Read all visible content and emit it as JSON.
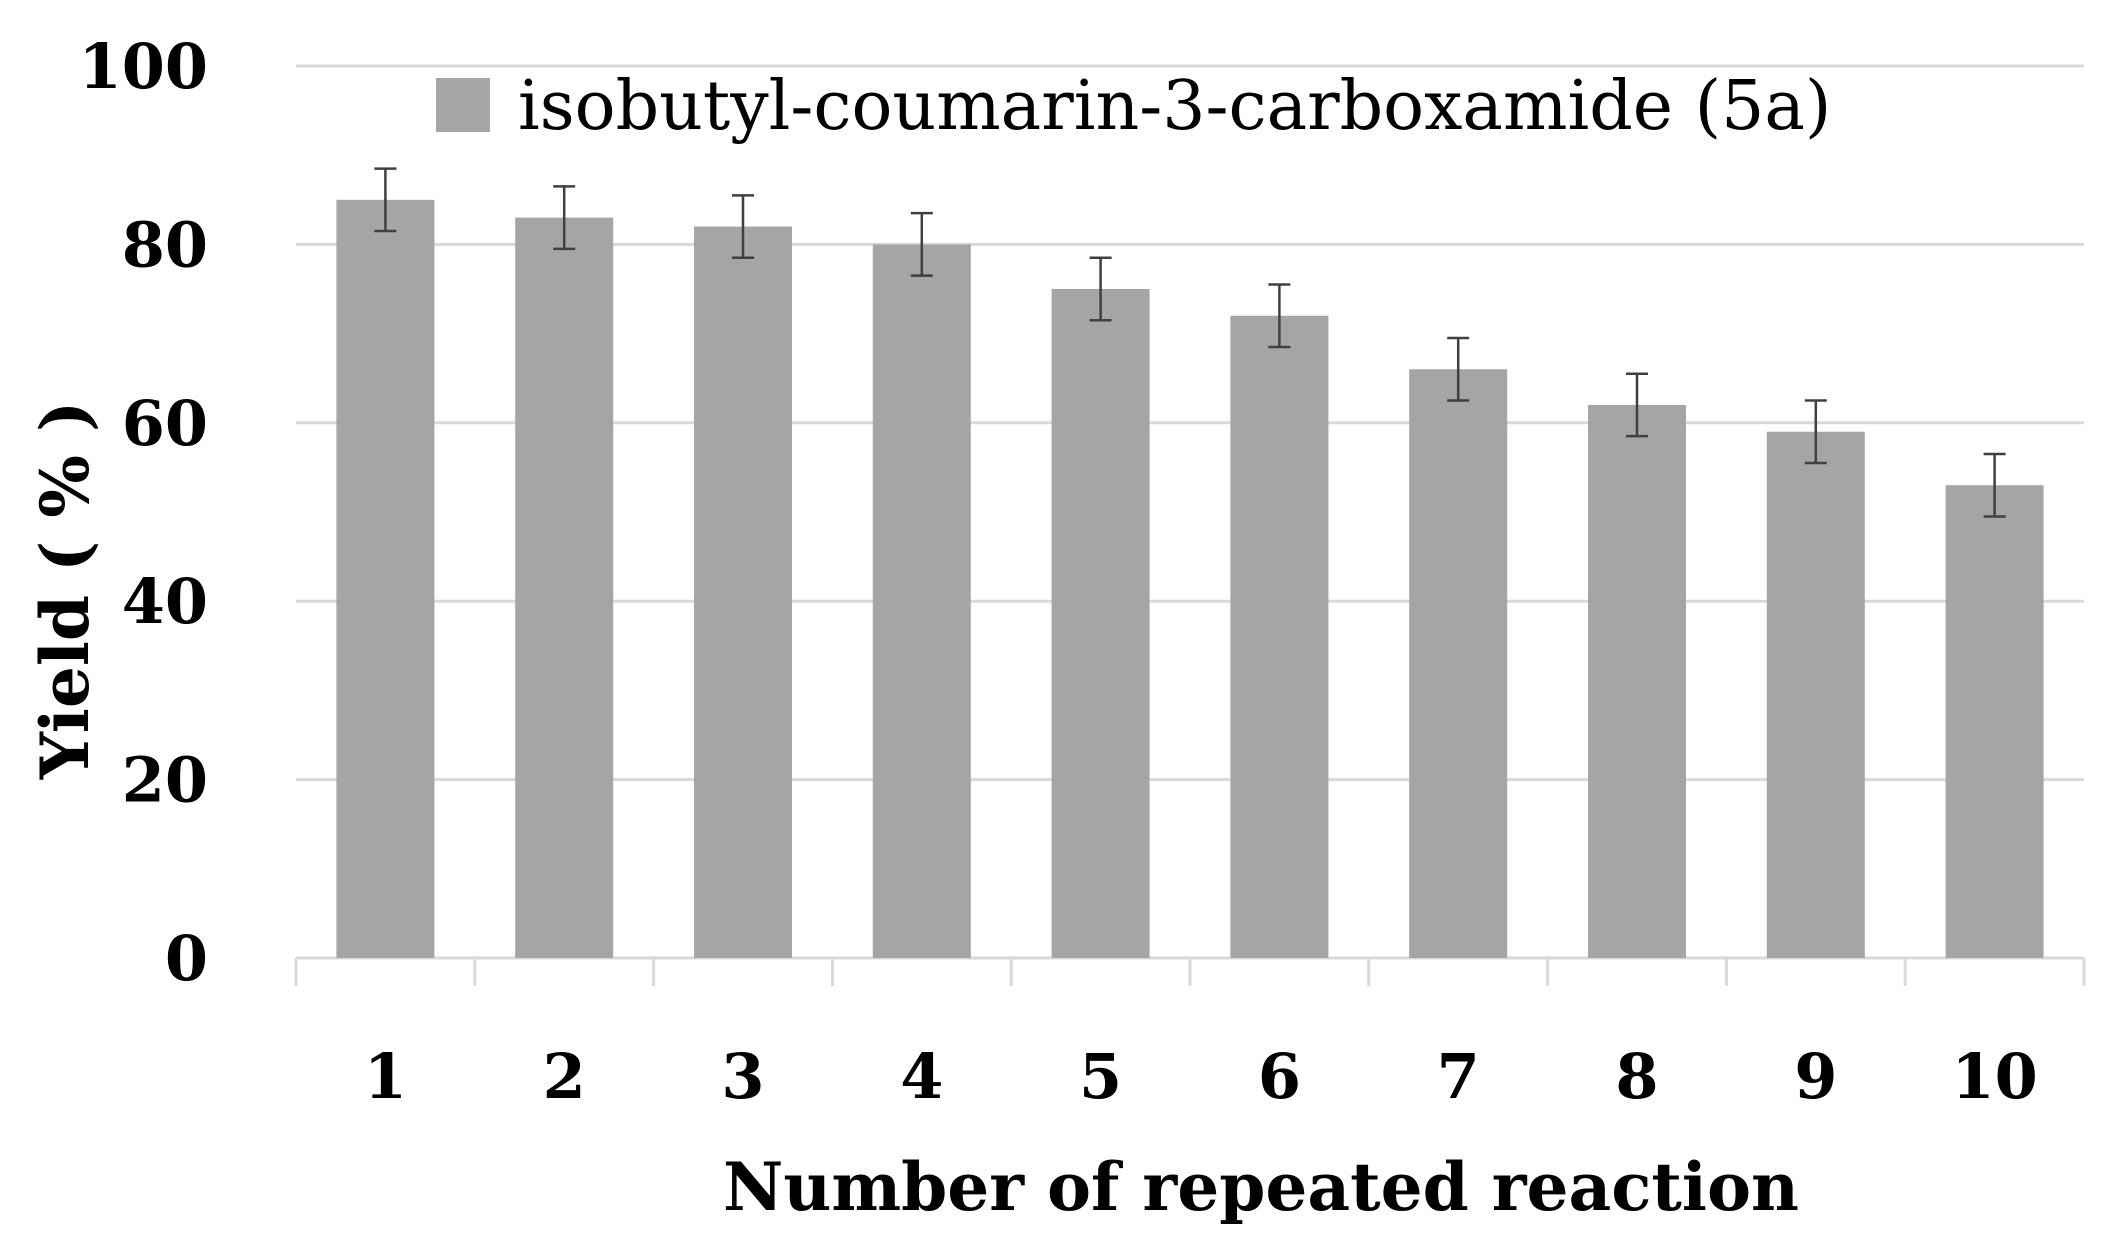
{
  "chart_data": {
    "type": "bar",
    "title": "",
    "xlabel": "Number of repeated reaction",
    "ylabel": "Yield ( % )",
    "categories": [
      "1",
      "2",
      "3",
      "4",
      "5",
      "6",
      "7",
      "8",
      "9",
      "10"
    ],
    "series": [
      {
        "name": "isobutyl-coumarin-3-carboxamide (5a)",
        "values": [
          85,
          83,
          82,
          80,
          75,
          72,
          66,
          62,
          59,
          53
        ],
        "error": [
          3.5,
          3.5,
          3.5,
          3.5,
          3.5,
          3.5,
          3.5,
          3.5,
          3.5,
          3.5
        ],
        "color": "#a5a5a5"
      }
    ],
    "ylim": [
      0,
      100
    ],
    "yticks": [
      "0",
      "20",
      "40",
      "60",
      "80",
      "100"
    ],
    "grid": true,
    "legend_position": "top-right",
    "colors": {
      "bar": "#a5a5a5",
      "grid": "#d9d9d9",
      "error_bar": "#404040",
      "axis": "#d9d9d9"
    }
  }
}
